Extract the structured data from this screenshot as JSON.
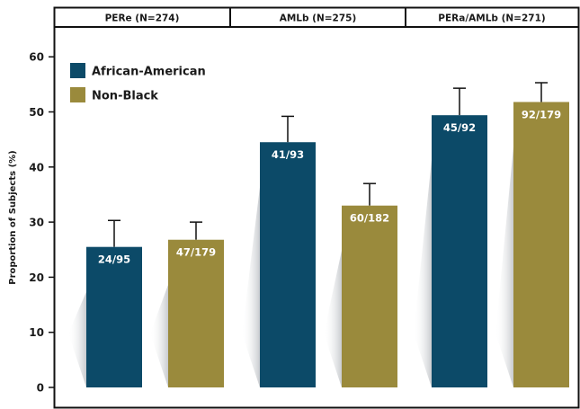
{
  "chart_data": {
    "type": "bar",
    "title": "",
    "xlabel": "",
    "ylabel": "Proportion of Subjects (%)",
    "ylim": [
      0,
      65
    ],
    "yticks": [
      0,
      10,
      20,
      30,
      40,
      50,
      60
    ],
    "grid": false,
    "legend_position": "top-left",
    "categories": [
      "PERe (N=274)",
      "AMLb (N=275)",
      "PERa/AMLb (N=271)"
    ],
    "series": [
      {
        "name": "African-American",
        "color": "#0c4a68",
        "values": [
          25.5,
          44.5,
          49.4
        ],
        "error_upper": [
          30.3,
          49.2,
          54.3
        ],
        "labels": [
          "24/95",
          "41/93",
          "45/92"
        ]
      },
      {
        "name": "Non-Black",
        "color": "#9a8a3c",
        "values": [
          26.8,
          33.0,
          51.8
        ],
        "error_upper": [
          30.0,
          37.0,
          55.3
        ],
        "labels": [
          "47/179",
          "60/182",
          "92/179"
        ]
      }
    ]
  }
}
